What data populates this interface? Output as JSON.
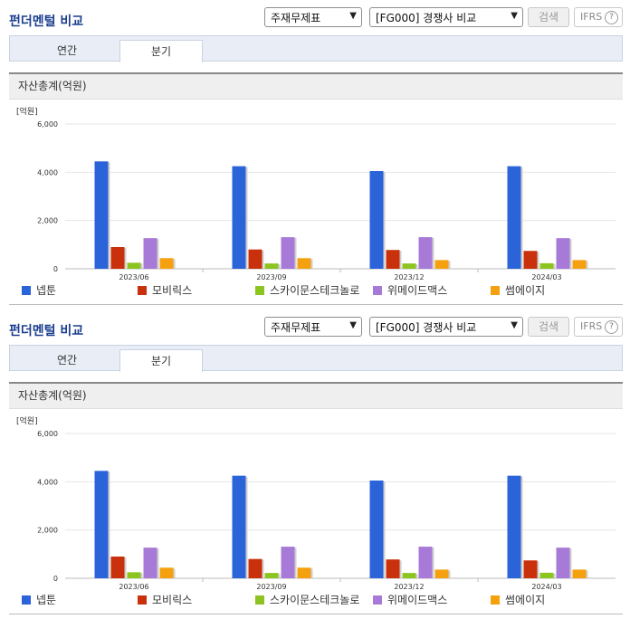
{
  "panels": [
    {
      "title": "펀더멘털 비교",
      "select1": "주재무제표",
      "select2": "[FG000] 경쟁사 비교",
      "search_label": "검색",
      "ifrs_label": "IFRS",
      "help_label": "?",
      "tabs": [
        {
          "label": "연간"
        },
        {
          "label": "분기"
        }
      ],
      "active_tab": "분기",
      "subtitle": "자산총계(억원)"
    },
    {
      "title": "펀더멘털 비교",
      "select1": "주재무제표",
      "select2": "[FG000] 경쟁사 비교",
      "search_label": "검색",
      "ifrs_label": "IFRS",
      "help_label": "?",
      "tabs": [
        {
          "label": "연간"
        },
        {
          "label": "분기"
        }
      ],
      "active_tab": "분기",
      "subtitle": "자산총계(억원)"
    }
  ],
  "chart_data": [
    {
      "type": "bar",
      "title": "자산총계(억원)",
      "unit_label": "[억원]",
      "categories": [
        "2023/06",
        "2023/09",
        "2023/12",
        "2024/03"
      ],
      "ylim": [
        0,
        6000
      ],
      "yticks": [
        "0",
        "2,000",
        "4,000",
        "6,000"
      ],
      "legend_position": "bottom",
      "series": [
        {
          "name": "넵툰",
          "color": "#2b63d9",
          "values": [
            4450,
            4250,
            4050,
            4250
          ]
        },
        {
          "name": "모비릭스",
          "color": "#c9300c",
          "values": [
            900,
            800,
            780,
            740
          ]
        },
        {
          "name": "스카이문스테크놀로지",
          "color": "#8cc420",
          "values": [
            250,
            220,
            220,
            230
          ]
        },
        {
          "name": "위메이드맥스",
          "color": "#a87ad8",
          "values": [
            1270,
            1310,
            1310,
            1270
          ]
        },
        {
          "name": "썸에이지",
          "color": "#f5a10f",
          "values": [
            440,
            440,
            360,
            360
          ]
        }
      ]
    },
    {
      "type": "bar",
      "title": "자산총계(억원)",
      "unit_label": "[억원]",
      "categories": [
        "2023/06",
        "2023/09",
        "2023/12",
        "2024/03"
      ],
      "ylim": [
        0,
        6000
      ],
      "yticks": [
        "0",
        "2,000",
        "4,000",
        "6,000"
      ],
      "legend_position": "bottom",
      "series": [
        {
          "name": "넵툰",
          "color": "#2b63d9",
          "values": [
            4450,
            4250,
            4050,
            4250
          ]
        },
        {
          "name": "모비릭스",
          "color": "#c9300c",
          "values": [
            900,
            800,
            780,
            740
          ]
        },
        {
          "name": "스카이문스테크놀로지",
          "color": "#8cc420",
          "values": [
            250,
            220,
            220,
            230
          ]
        },
        {
          "name": "위메이드맥스",
          "color": "#a87ad8",
          "values": [
            1270,
            1310,
            1310,
            1270
          ]
        },
        {
          "name": "썸에이지",
          "color": "#f5a10f",
          "values": [
            440,
            440,
            360,
            360
          ]
        }
      ]
    }
  ]
}
